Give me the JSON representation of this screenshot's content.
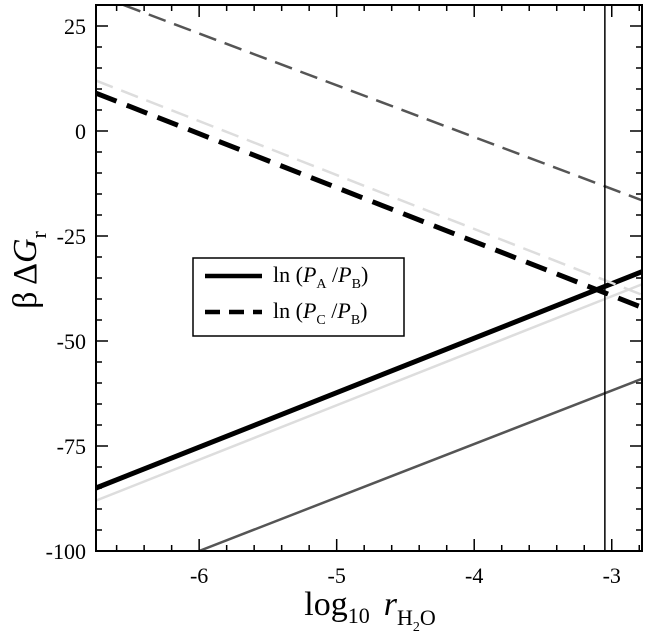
{
  "chart_data": {
    "type": "line",
    "xlabel": {
      "main": "log",
      "sub": "10",
      "var": "r",
      "var_sub": "H",
      "var_sub2": "2",
      "var_sub3": "O"
    },
    "ylabel": {
      "greek": "β Δ",
      "var": "G",
      "sub": "r"
    },
    "xlim": [
      -6.75,
      -2.78
    ],
    "ylim": [
      -100,
      30
    ],
    "x_ticks": [
      -6,
      -5,
      -4,
      -3
    ],
    "x_tick_labels": [
      "-6",
      "-5",
      "-4",
      "-3"
    ],
    "y_ticks": [
      -100,
      -75,
      -50,
      -25,
      0,
      25
    ],
    "y_tick_labels": [
      "-100",
      "-75",
      "-50",
      "-25",
      "0",
      "25"
    ],
    "vline_x": -3.05,
    "legend_position": "center-left",
    "legend": [
      {
        "prefix": "ln (",
        "p1": "P",
        "s1": "A",
        "sep": " /",
        "p2": "P",
        "s2": "B",
        "suffix": ")",
        "style": "solid"
      },
      {
        "prefix": "ln (",
        "p1": "P",
        "s1": "C",
        "sep": " /",
        "p2": "P",
        "s2": "B",
        "suffix": ")",
        "style": "dashed"
      }
    ],
    "series": [
      {
        "style": "solid",
        "color": "#000000",
        "width": "thick",
        "x": [
          -6.75,
          -2.78
        ],
        "y": [
          -85,
          -33.5
        ]
      },
      {
        "style": "solid",
        "color": "#dddddd",
        "width": "medium",
        "x": [
          -6.75,
          -2.78
        ],
        "y": [
          -88,
          -36.5
        ]
      },
      {
        "style": "solid",
        "color": "#555555",
        "width": "medium",
        "x": [
          -6.0,
          -2.78
        ],
        "y": [
          -100,
          -59
        ]
      },
      {
        "style": "dashed",
        "color": "#000000",
        "width": "thick",
        "x": [
          -6.75,
          -2.78
        ],
        "y": [
          9,
          -42
        ]
      },
      {
        "style": "dashed",
        "color": "#dddddd",
        "width": "medium",
        "x": [
          -6.75,
          -2.78
        ],
        "y": [
          12,
          -39
        ]
      },
      {
        "style": "dashed",
        "color": "#555555",
        "width": "medium",
        "x": [
          -6.55,
          -2.78
        ],
        "y": [
          30,
          -16.5
        ]
      }
    ]
  }
}
